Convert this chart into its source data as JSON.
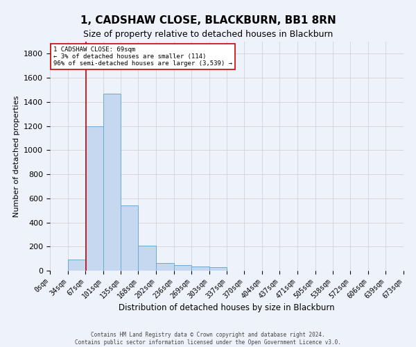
{
  "title": "1, CADSHAW CLOSE, BLACKBURN, BB1 8RN",
  "subtitle": "Size of property relative to detached houses in Blackburn",
  "xlabel": "Distribution of detached houses by size in Blackburn",
  "ylabel": "Number of detached properties",
  "footer_line1": "Contains HM Land Registry data © Crown copyright and database right 2024.",
  "footer_line2": "Contains public sector information licensed under the Open Government Licence v3.0.",
  "bar_edges": [
    0,
    34,
    67,
    101,
    135,
    168,
    202,
    236,
    269,
    303,
    337,
    370,
    404,
    437,
    471,
    505,
    538,
    572,
    606,
    639,
    673
  ],
  "bar_values": [
    0,
    90,
    1200,
    1470,
    540,
    205,
    65,
    45,
    35,
    30,
    0,
    0,
    0,
    0,
    0,
    0,
    0,
    0,
    0,
    0
  ],
  "bar_color": "#c5d8f0",
  "bar_edge_color": "#6aaad4",
  "property_size": 69,
  "vline_color": "#cc0000",
  "ylim": [
    0,
    1900
  ],
  "yticks": [
    0,
    200,
    400,
    600,
    800,
    1000,
    1200,
    1400,
    1600,
    1800
  ],
  "annotation_text": "1 CADSHAW CLOSE: 69sqm\n← 3% of detached houses are smaller (114)\n96% of semi-detached houses are larger (3,539) →",
  "annotation_box_color": "#ffffff",
  "annotation_box_edge_color": "#cc0000",
  "grid_color": "#cccccc",
  "background_color": "#eef2fa",
  "title_fontsize": 11,
  "subtitle_fontsize": 9,
  "tick_label_fontsize": 7
}
